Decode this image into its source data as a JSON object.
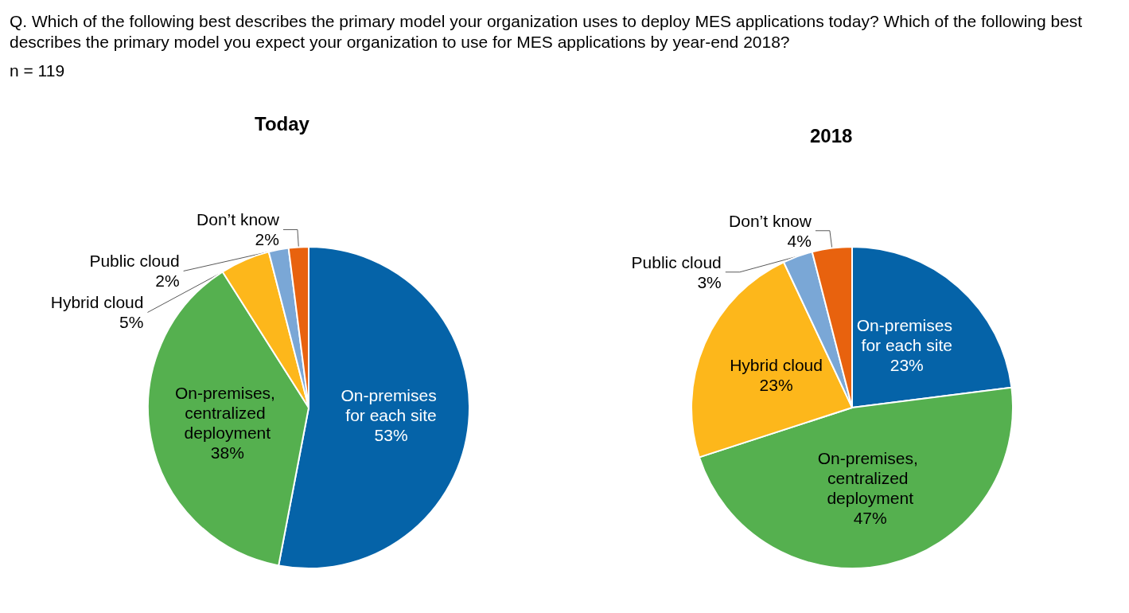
{
  "chart_data": [
    {
      "type": "pie",
      "title": "Today",
      "annotations": [
        "Q. Which of the following best describes the primary model your organization uses to deploy MES applications today? Which of the following best describes the primary model you expect your organization to use for MES applications by year-end 2018?",
        "n = 119"
      ],
      "categories": [
        "On-premises for each site",
        "On-premises, centralized deployment",
        "Hybrid cloud",
        "Public cloud",
        "Don’t know"
      ],
      "values": [
        53,
        38,
        5,
        2,
        2
      ],
      "value_labels": [
        "53%",
        "38%",
        "5%",
        "2%",
        "2%"
      ],
      "colors": [
        "#0563a8",
        "#55b04f",
        "#fdb71b",
        "#7aa7d6",
        "#e8620e"
      ]
    },
    {
      "type": "pie",
      "title": "2018",
      "categories": [
        "On-premises for each site",
        "On-premises, centralized deployment",
        "Hybrid cloud",
        "Public cloud",
        "Don’t know"
      ],
      "values": [
        23,
        47,
        23,
        3,
        4
      ],
      "value_labels": [
        "23%",
        "47%",
        "23%",
        "3%",
        "4%"
      ],
      "colors": [
        "#0563a8",
        "#55b04f",
        "#fdb71b",
        "#7aa7d6",
        "#e8620e"
      ]
    }
  ]
}
